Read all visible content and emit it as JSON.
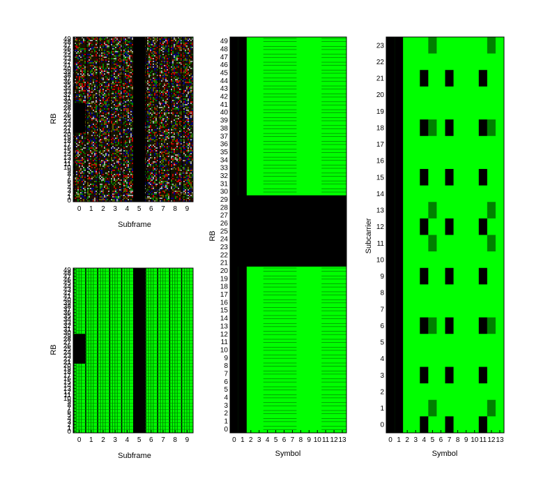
{
  "colors": {
    "background": "#ffffff",
    "bright_green": "#00ff00",
    "dark_green": "#008000",
    "black": "#000000",
    "noise_red": "#c00000",
    "noise_green": "#008000",
    "noise_blue": "#000080"
  },
  "chart_data": [
    {
      "id": "top-left",
      "type": "heatmap",
      "xlabel": "Subframe",
      "ylabel": "RB",
      "x_ticks": [
        "0",
        "1",
        "2",
        "3",
        "4",
        "5",
        "6",
        "7",
        "8",
        "9"
      ],
      "y_ticks": [
        "0",
        "1",
        "2",
        "3",
        "4",
        "5",
        "6",
        "7",
        "8",
        "9",
        "10",
        "11",
        "12",
        "13",
        "14",
        "15",
        "16",
        "17",
        "18",
        "19",
        "20",
        "21",
        "22",
        "23",
        "24",
        "25",
        "26",
        "27",
        "28",
        "29",
        "30",
        "31",
        "32",
        "33",
        "34",
        "35",
        "36",
        "37",
        "38",
        "39",
        "40",
        "41",
        "42",
        "43",
        "44",
        "45",
        "46",
        "47",
        "48",
        "49"
      ],
      "xlim": [
        -0.5,
        9.5
      ],
      "ylim": [
        -0.5,
        49.5
      ],
      "fill": "multicolor-noise",
      "blank_regions": [
        {
          "x0": -0.5,
          "x1": 0.5,
          "y0": 20.5,
          "y1": 29.5
        },
        {
          "x0": 4.5,
          "x1": 5.5,
          "y0": -0.5,
          "y1": 49.5
        }
      ]
    },
    {
      "id": "bottom-left",
      "type": "heatmap",
      "xlabel": "Subframe",
      "ylabel": "RB",
      "x_ticks": [
        "0",
        "1",
        "2",
        "3",
        "4",
        "5",
        "6",
        "7",
        "8",
        "9"
      ],
      "y_ticks": [
        "0",
        "1",
        "2",
        "3",
        "4",
        "5",
        "6",
        "7",
        "8",
        "9",
        "10",
        "11",
        "12",
        "13",
        "14",
        "15",
        "16",
        "17",
        "18",
        "19",
        "20",
        "21",
        "22",
        "23",
        "24",
        "25",
        "26",
        "27",
        "28",
        "29",
        "30",
        "31",
        "32",
        "33",
        "34",
        "35",
        "36",
        "37",
        "38",
        "39",
        "40",
        "41",
        "42",
        "43",
        "44",
        "45",
        "46",
        "47",
        "48",
        "49"
      ],
      "xlim": [
        -0.5,
        9.5
      ],
      "ylim": [
        -0.5,
        49.5
      ],
      "fill": "green-grid",
      "blank_regions": [
        {
          "x0": -0.5,
          "x1": 0.5,
          "y0": 20.5,
          "y1": 29.5
        },
        {
          "x0": 4.5,
          "x1": 5.5,
          "y0": -0.5,
          "y1": 49.5
        }
      ]
    },
    {
      "id": "middle",
      "type": "heatmap",
      "xlabel": "Symbol",
      "ylabel": "RB",
      "x_ticks": [
        "0",
        "1",
        "2",
        "3",
        "4",
        "5",
        "6",
        "7",
        "8",
        "9",
        "10",
        "11",
        "12",
        "13"
      ],
      "y_ticks": [
        "0",
        "1",
        "2",
        "3",
        "4",
        "5",
        "6",
        "7",
        "8",
        "9",
        "10",
        "11",
        "12",
        "13",
        "14",
        "15",
        "16",
        "17",
        "18",
        "19",
        "20",
        "21",
        "22",
        "23",
        "24",
        "25",
        "26",
        "27",
        "28",
        "29",
        "30",
        "31",
        "32",
        "33",
        "34",
        "35",
        "36",
        "37",
        "38",
        "39",
        "40",
        "41",
        "42",
        "43",
        "44",
        "45",
        "46",
        "47",
        "48",
        "49"
      ],
      "xlim": [
        -0.5,
        13.5
      ],
      "ylim": [
        -0.5,
        49.5
      ],
      "black_columns": [
        0,
        1
      ],
      "black_rows": [
        21,
        22,
        23,
        24,
        25,
        26,
        27,
        28,
        29
      ],
      "striped_columns": [
        4,
        5,
        6,
        7,
        11,
        12,
        13
      ]
    },
    {
      "id": "right",
      "type": "heatmap",
      "xlabel": "Symbol",
      "ylabel": "Subcarrier",
      "x_ticks": [
        "0",
        "1",
        "2",
        "3",
        "4",
        "5",
        "6",
        "7",
        "8",
        "9",
        "10",
        "11",
        "12",
        "13"
      ],
      "y_ticks": [
        "0",
        "1",
        "2",
        "3",
        "4",
        "5",
        "6",
        "7",
        "8",
        "9",
        "10",
        "11",
        "12",
        "13",
        "14",
        "15",
        "16",
        "17",
        "18",
        "19",
        "20",
        "21",
        "22",
        "23"
      ],
      "xlim": [
        -0.5,
        13.5
      ],
      "ylim": [
        -0.5,
        23.5
      ],
      "black_columns": [
        0,
        1
      ],
      "black_cells": [
        [
          4,
          0
        ],
        [
          7,
          0
        ],
        [
          11,
          0
        ],
        [
          4,
          3
        ],
        [
          7,
          3
        ],
        [
          11,
          3
        ],
        [
          4,
          6
        ],
        [
          7,
          6
        ],
        [
          11,
          6
        ],
        [
          4,
          9
        ],
        [
          7,
          9
        ],
        [
          11,
          9
        ],
        [
          4,
          12
        ],
        [
          7,
          12
        ],
        [
          11,
          12
        ],
        [
          4,
          15
        ],
        [
          7,
          15
        ],
        [
          11,
          15
        ],
        [
          4,
          18
        ],
        [
          7,
          18
        ],
        [
          11,
          18
        ],
        [
          4,
          21
        ],
        [
          7,
          21
        ],
        [
          11,
          21
        ]
      ],
      "dark_green_cells": [
        [
          5,
          1
        ],
        [
          12,
          1
        ],
        [
          5,
          6
        ],
        [
          12,
          6
        ],
        [
          5,
          11
        ],
        [
          12,
          11
        ],
        [
          5,
          13
        ],
        [
          12,
          13
        ],
        [
          5,
          18
        ],
        [
          12,
          18
        ],
        [
          5,
          23
        ],
        [
          12,
          23
        ]
      ]
    }
  ]
}
